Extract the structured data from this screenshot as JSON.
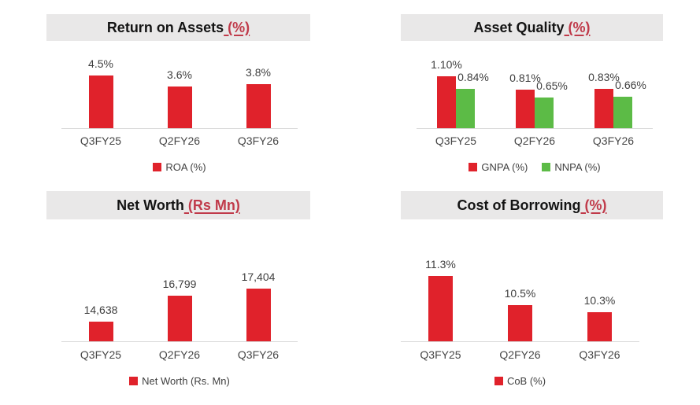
{
  "colors": {
    "background": "#FFFFFF",
    "header_bg": "#E9E8E8",
    "title_text": "#141414",
    "title_accent": "#C03A4A",
    "bar_red": "#E0222B",
    "bar_green": "#5CBB46",
    "label_text": "#3F3F3F",
    "axis_line": "#D8D8D8"
  },
  "chart_data": [
    {
      "type": "bar",
      "title": "Return on Assets",
      "title_accent": " (%)",
      "categories": [
        "Q3FY25",
        "Q2FY26",
        "Q3FY26"
      ],
      "series": [
        {
          "name": "ROA (%)",
          "color": "#E0222B",
          "values": [
            4.5,
            3.6,
            3.8
          ],
          "labels": [
            "4.5%",
            "3.6%",
            "3.8%"
          ]
        }
      ],
      "ylim": [
        0,
        5
      ],
      "grid": false,
      "legend_position": "bottom"
    },
    {
      "type": "bar",
      "title": "Asset Quality",
      "title_accent": " (%)",
      "categories": [
        "Q3FY25",
        "Q2FY26",
        "Q3FY26"
      ],
      "series": [
        {
          "name": "GNPA (%)",
          "color": "#E0222B",
          "values": [
            1.1,
            0.81,
            0.83
          ],
          "labels": [
            "1.10%",
            "0.81%",
            "0.83%"
          ]
        },
        {
          "name": "NNPA (%)",
          "color": "#5CBB46",
          "values": [
            0.84,
            0.65,
            0.66
          ],
          "labels": [
            "0.84%",
            "0.65%",
            "0.66%"
          ]
        }
      ],
      "ylim": [
        0,
        1.2
      ],
      "grid": false,
      "legend_position": "bottom"
    },
    {
      "type": "bar",
      "title": "Net Worth",
      "title_accent": " (Rs Mn)",
      "categories": [
        "Q3FY25",
        "Q2FY26",
        "Q3FY26"
      ],
      "series": [
        {
          "name": "Net Worth (Rs. Mn)",
          "color": "#E0222B",
          "values": [
            14638,
            16799,
            17404
          ],
          "labels": [
            "14,638",
            "16,799",
            "17,404"
          ]
        }
      ],
      "ylim": [
        13000,
        18000
      ],
      "grid": false,
      "legend_position": "bottom"
    },
    {
      "type": "bar",
      "title": "Cost of Borrowing",
      "title_accent": " (%)",
      "categories": [
        "Q3FY25",
        "Q2FY26",
        "Q3FY26"
      ],
      "series": [
        {
          "name": "CoB (%)",
          "color": "#E0222B",
          "values": [
            11.3,
            10.5,
            10.3
          ],
          "labels": [
            "11.3%",
            "10.5%",
            "10.3%"
          ]
        }
      ],
      "ylim": [
        9.5,
        11.5
      ],
      "grid": false,
      "legend_position": "bottom"
    }
  ]
}
